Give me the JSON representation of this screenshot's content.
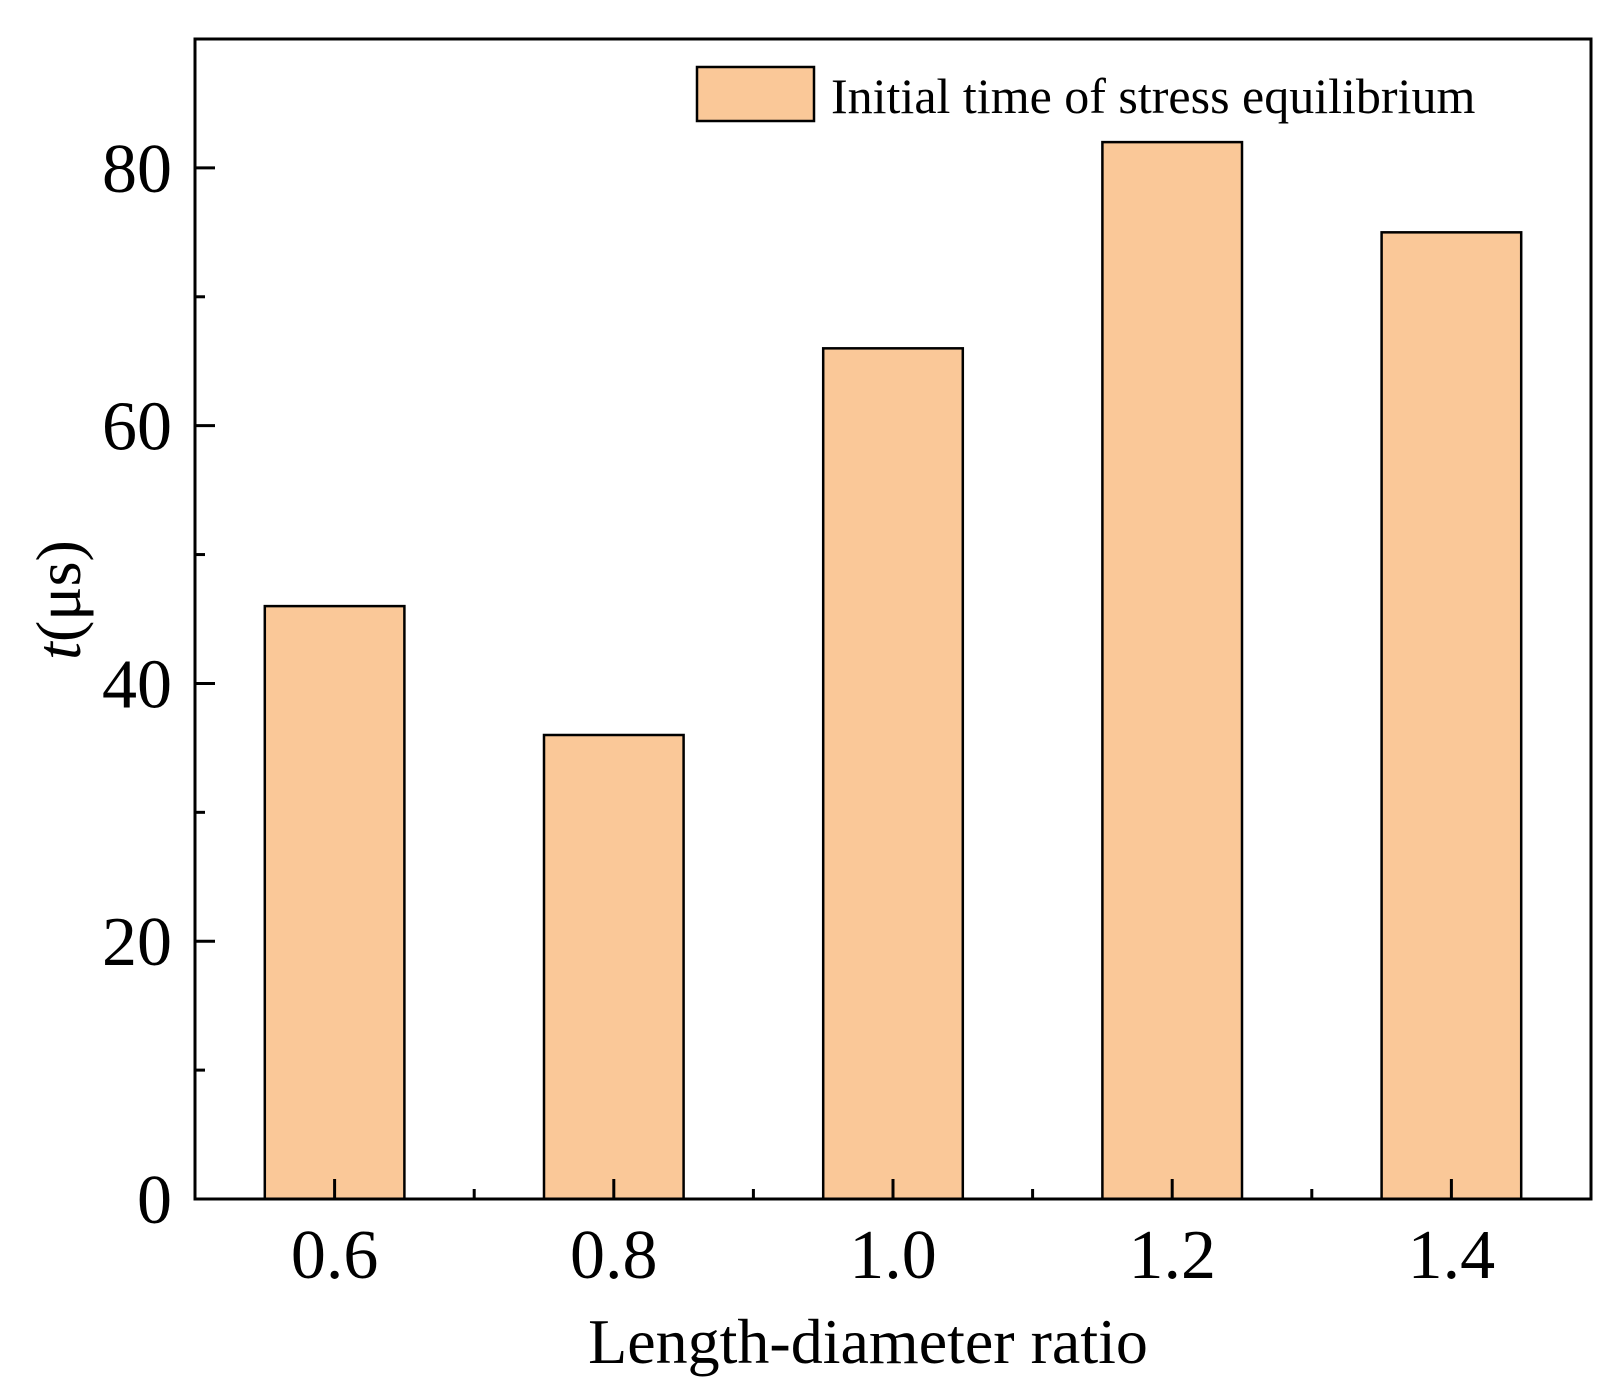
{
  "chart_data": {
    "type": "bar",
    "title": "",
    "categories": [
      "0.6",
      "0.8",
      "1.0",
      "1.2",
      "1.4"
    ],
    "series": [
      {
        "name": "Initial time of stress equilibrium",
        "values": [
          46,
          36,
          66,
          82,
          75
        ],
        "color": "#FAC898"
      }
    ],
    "xlabel": "Length-diameter ratio",
    "ylabel_italic": "t",
    "ylabel_rest": "(μs)",
    "ylim": [
      0,
      90
    ],
    "yticks": [
      0,
      20,
      40,
      60,
      80
    ],
    "yticks_minor": [
      10,
      30,
      50,
      70
    ],
    "ytick_labels": [
      "0",
      "20",
      "40",
      "60",
      "80"
    ],
    "grid": false,
    "legend_position": "top-right",
    "edge_color": "#000000"
  }
}
